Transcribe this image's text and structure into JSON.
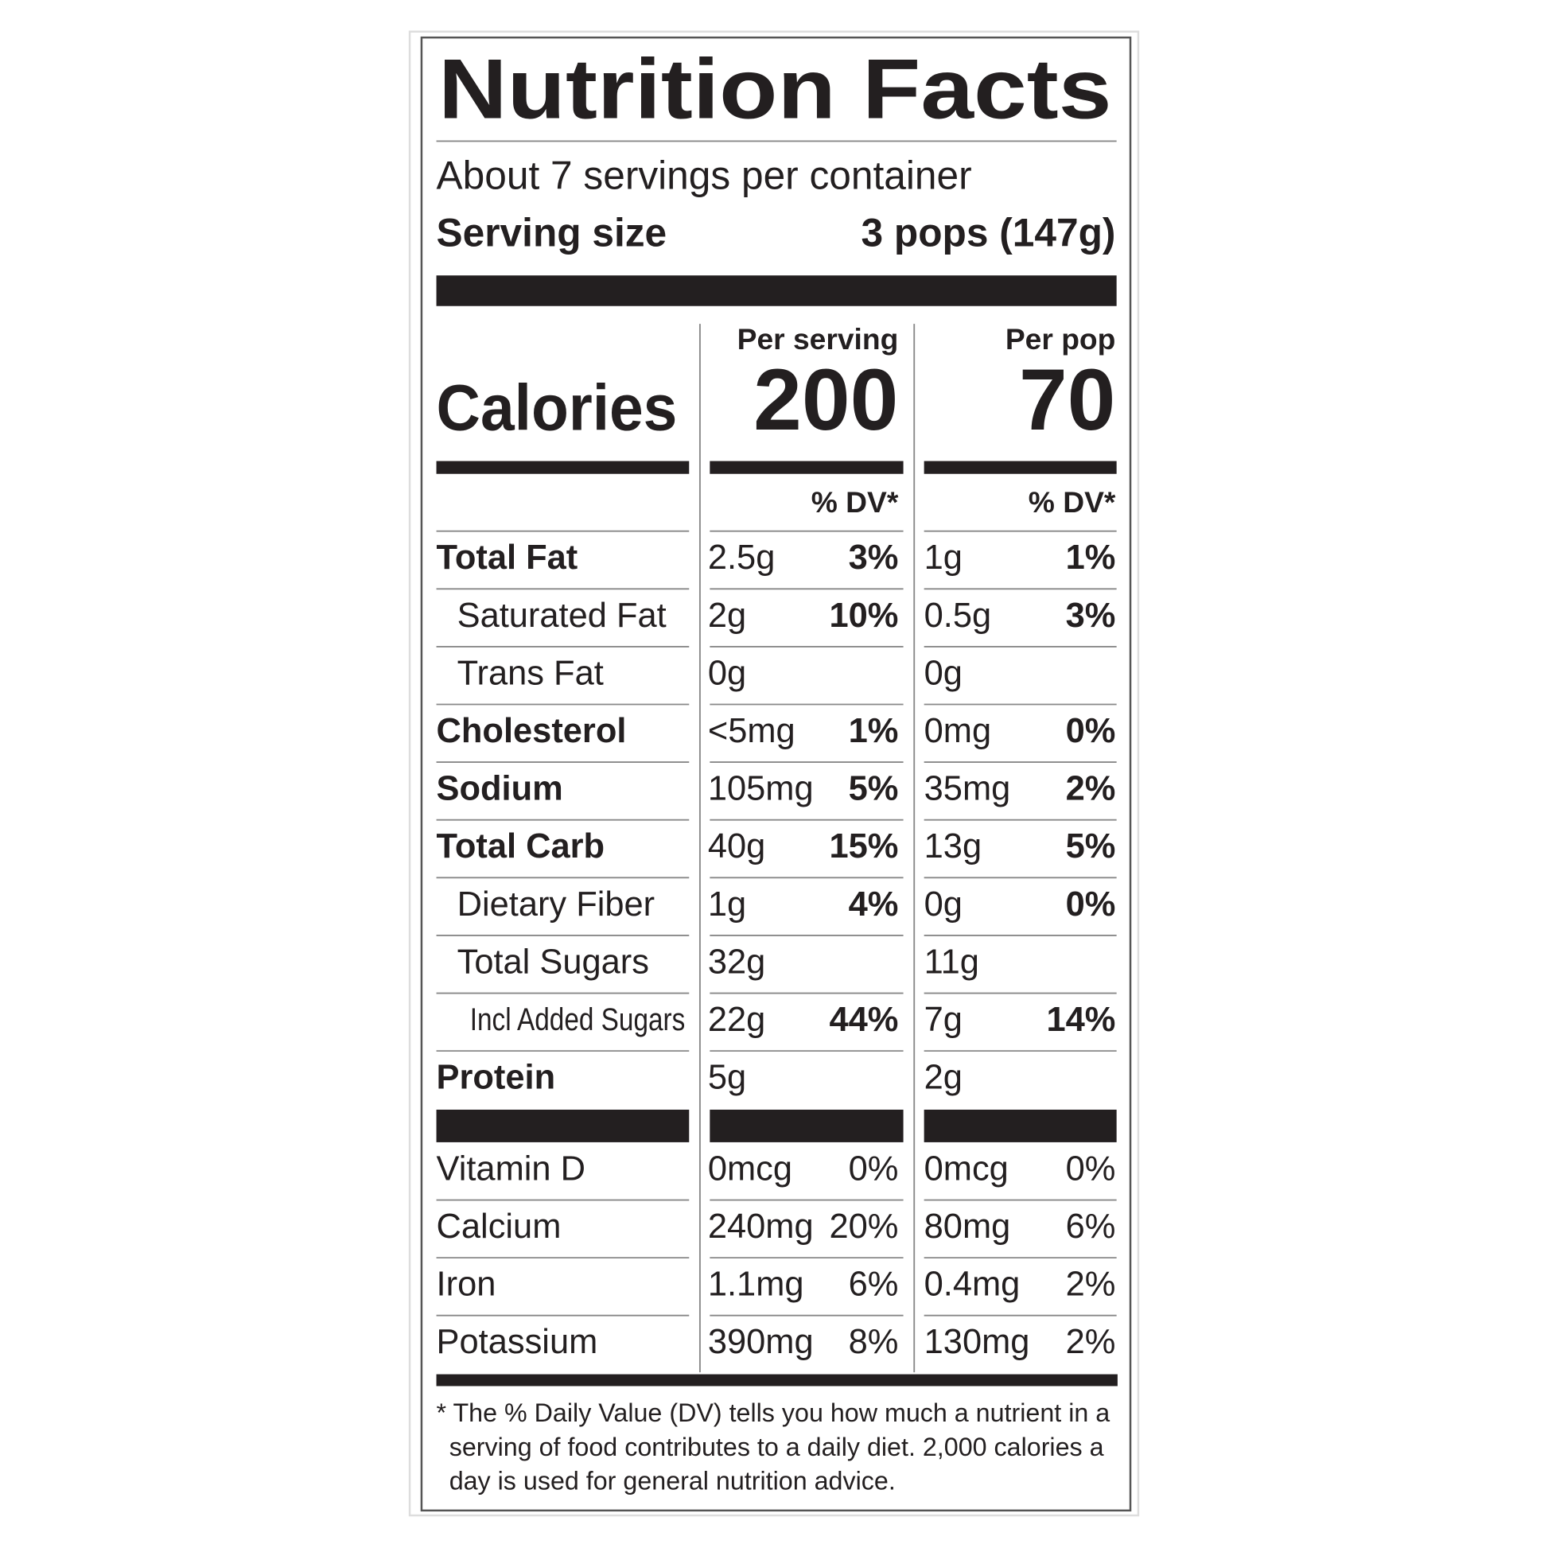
{
  "title": "Nutrition Facts",
  "servings_per_container": "About 7 servings per container",
  "serving_size": {
    "label": "Serving size",
    "value": "3 pops (147g)"
  },
  "calories_label": "Calories",
  "columns": [
    {
      "header": "Per serving",
      "calories": "200"
    },
    {
      "header": "Per pop",
      "calories": "70"
    }
  ],
  "dv_header": "% DV*",
  "nutrients": [
    {
      "name": "Total Fat",
      "bold": true,
      "indent": 0,
      "values": [
        [
          "2.5g",
          "3%"
        ],
        [
          "1g",
          "1%"
        ]
      ]
    },
    {
      "name": "Saturated Fat",
      "bold": false,
      "indent": 1,
      "values": [
        [
          "2g",
          "10%"
        ],
        [
          "0.5g",
          "3%"
        ]
      ]
    },
    {
      "name": "Trans Fat",
      "bold": false,
      "indent": 1,
      "values": [
        [
          "0g"
        ],
        [
          "0g"
        ]
      ]
    },
    {
      "name": "Cholesterol",
      "bold": true,
      "indent": 0,
      "values": [
        [
          "<5mg",
          "1%"
        ],
        [
          "0mg",
          "0%"
        ]
      ]
    },
    {
      "name": "Sodium",
      "bold": true,
      "indent": 0,
      "values": [
        [
          "105mg",
          "5%"
        ],
        [
          "35mg",
          "2%"
        ]
      ]
    },
    {
      "name": "Total Carb",
      "bold": true,
      "indent": 0,
      "values": [
        [
          "40g",
          "15%"
        ],
        [
          "13g",
          "5%"
        ]
      ]
    },
    {
      "name": "Dietary Fiber",
      "bold": false,
      "indent": 1,
      "values": [
        [
          "1g",
          "4%"
        ],
        [
          "0g",
          "0%"
        ]
      ]
    },
    {
      "name": "Total Sugars",
      "bold": false,
      "indent": 1,
      "values": [
        [
          "32g"
        ],
        [
          "11g"
        ]
      ]
    },
    {
      "name": "Incl Added Sugars",
      "bold": false,
      "indent": 2,
      "values": [
        [
          "22g",
          "44%"
        ],
        [
          "7g",
          "14%"
        ]
      ]
    },
    {
      "name": "Protein",
      "bold": true,
      "indent": 0,
      "values": [
        [
          "5g"
        ],
        [
          "2g"
        ]
      ]
    }
  ],
  "vitamins": [
    {
      "name": "Vitamin D",
      "values": [
        [
          "0mcg",
          "0%"
        ],
        [
          "0mcg",
          "0%"
        ]
      ]
    },
    {
      "name": "Calcium",
      "values": [
        [
          "240mg",
          "20%"
        ],
        [
          "80mg",
          "6%"
        ]
      ]
    },
    {
      "name": "Iron",
      "values": [
        [
          "1.1mg",
          "6%"
        ],
        [
          "0.4mg",
          "2%"
        ]
      ]
    },
    {
      "name": "Potassium",
      "values": [
        [
          "390mg",
          "8%"
        ],
        [
          "130mg",
          "2%"
        ]
      ]
    }
  ],
  "footnote": [
    "* The % Daily Value (DV) tells you how much a nutrient in a",
    "serving of food contributes to a daily diet. 2,000 calories a",
    "day is used for general nutrition advice."
  ]
}
